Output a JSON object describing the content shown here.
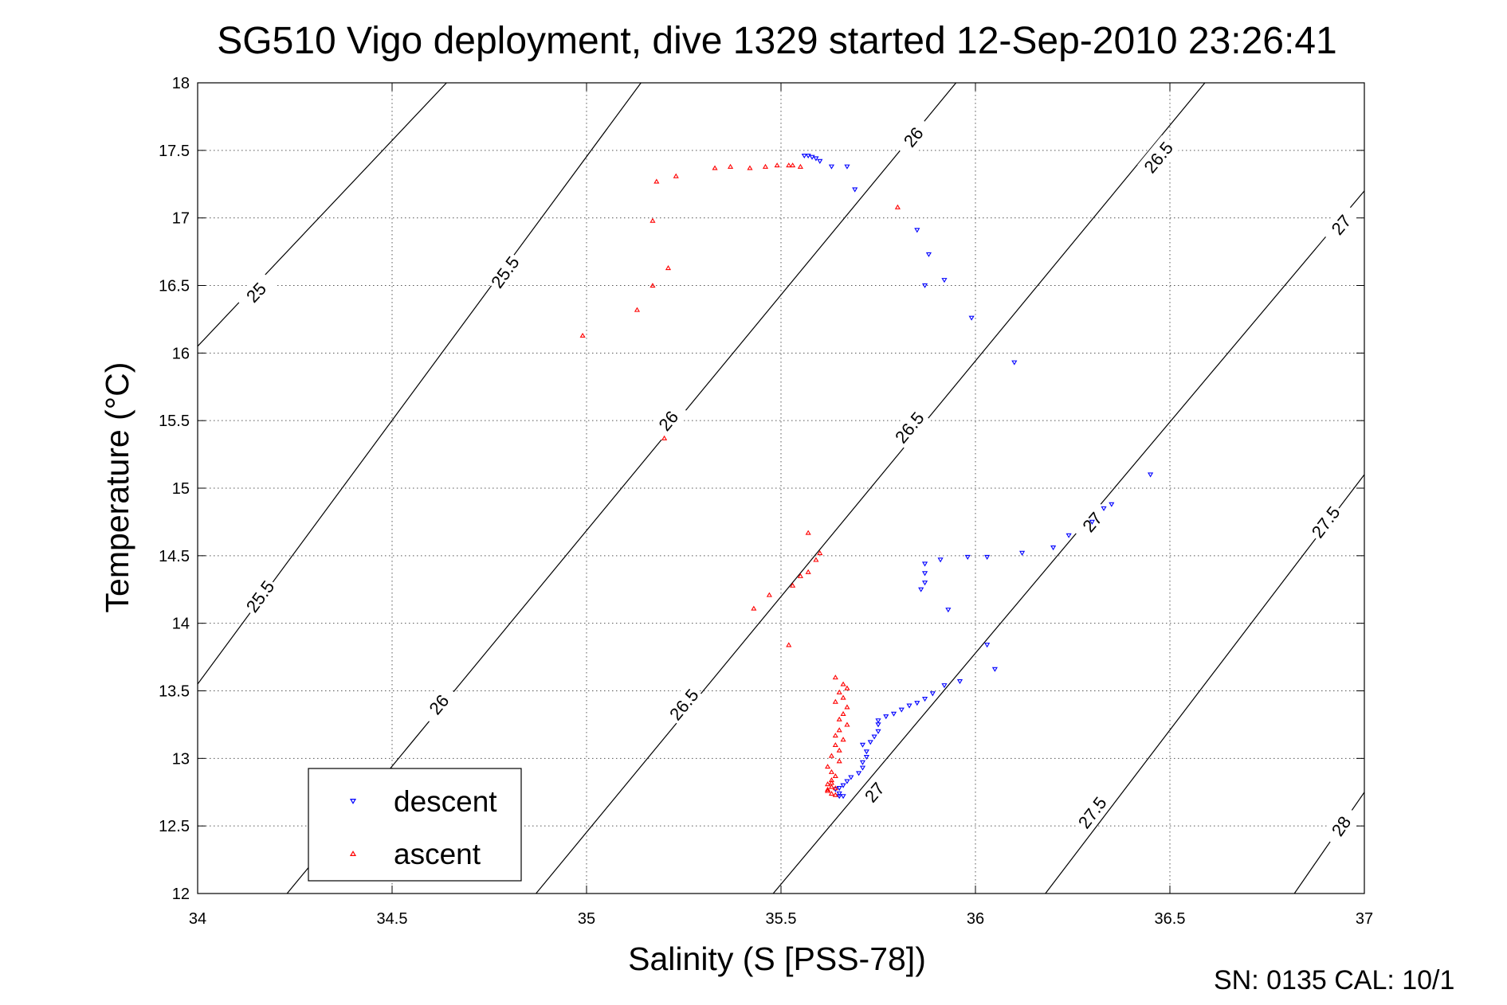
{
  "chart_data": {
    "type": "scatter",
    "title": "SG510 Vigo deployment, dive 1329 started 12-Sep-2010 23:26:41",
    "xlabel": "Salinity (S [PSS-78])",
    "ylabel": "Temperature (°C)",
    "xlim": [
      34,
      37
    ],
    "ylim": [
      12,
      18
    ],
    "xticks": [
      "34",
      "34.5",
      "35",
      "35.5",
      "36",
      "36.5",
      "37"
    ],
    "yticks": [
      "12",
      "12.5",
      "13",
      "13.5",
      "14",
      "14.5",
      "15",
      "15.5",
      "16",
      "16.5",
      "17",
      "17.5",
      "18"
    ],
    "grid": true,
    "legend_position": "bottom-left",
    "footnote": "SN: 0135  CAL: 10/1",
    "density_contours": [
      {
        "level": "25",
        "points": [
          [
            34.0,
            16.05
          ],
          [
            34.64,
            18.0
          ]
        ],
        "labels": [
          [
            34.15,
            16.45
          ]
        ]
      },
      {
        "level": "25.5",
        "points": [
          [
            34.0,
            13.55
          ],
          [
            35.14,
            18.0
          ]
        ],
        "labels": [
          [
            34.16,
            14.2
          ],
          [
            34.79,
            16.6
          ]
        ]
      },
      {
        "level": "26",
        "points": [
          [
            34.23,
            12.0
          ],
          [
            35.95,
            18.0
          ]
        ],
        "labels": [
          [
            34.62,
            13.4
          ],
          [
            35.21,
            15.5
          ],
          [
            35.84,
            17.6
          ]
        ]
      },
      {
        "level": "26.5",
        "points": [
          [
            34.87,
            12.0
          ],
          [
            36.59,
            18.0
          ]
        ],
        "labels": [
          [
            35.25,
            13.4
          ],
          [
            35.83,
            15.45
          ],
          [
            36.47,
            17.45
          ]
        ]
      },
      {
        "level": "27",
        "points": [
          [
            35.48,
            12.0
          ],
          [
            37.0,
            17.2
          ]
        ],
        "labels": [
          [
            35.74,
            12.75
          ],
          [
            36.3,
            14.75
          ],
          [
            36.94,
            16.95
          ]
        ]
      },
      {
        "level": "27.5",
        "points": [
          [
            36.18,
            12.0
          ],
          [
            37.0,
            15.1
          ]
        ],
        "labels": [
          [
            36.3,
            12.6
          ],
          [
            36.9,
            14.75
          ]
        ]
      },
      {
        "level": "28",
        "points": [
          [
            36.82,
            12.0
          ],
          [
            37.0,
            12.75
          ]
        ],
        "labels": [
          [
            36.94,
            12.5
          ]
        ]
      }
    ],
    "series": [
      {
        "name": "descent",
        "color": "#0000ff",
        "marker": "triangle-down",
        "points": [
          [
            35.56,
            17.46
          ],
          [
            35.57,
            17.46
          ],
          [
            35.58,
            17.45
          ],
          [
            35.59,
            17.44
          ],
          [
            35.6,
            17.42
          ],
          [
            35.63,
            17.38
          ],
          [
            35.67,
            17.38
          ],
          [
            35.69,
            17.21
          ],
          [
            35.85,
            16.91
          ],
          [
            35.88,
            16.73
          ],
          [
            35.87,
            16.5
          ],
          [
            35.92,
            16.54
          ],
          [
            35.99,
            16.26
          ],
          [
            36.1,
            15.93
          ],
          [
            36.45,
            15.1
          ],
          [
            36.35,
            14.88
          ],
          [
            36.33,
            14.85
          ],
          [
            36.3,
            14.75
          ],
          [
            36.24,
            14.65
          ],
          [
            36.2,
            14.56
          ],
          [
            36.12,
            14.52
          ],
          [
            36.03,
            14.49
          ],
          [
            35.98,
            14.49
          ],
          [
            35.91,
            14.47
          ],
          [
            35.87,
            14.44
          ],
          [
            35.87,
            14.37
          ],
          [
            35.87,
            14.3
          ],
          [
            35.86,
            14.25
          ],
          [
            35.93,
            14.1
          ],
          [
            36.03,
            13.84
          ],
          [
            36.05,
            13.66
          ],
          [
            35.96,
            13.57
          ],
          [
            35.92,
            13.54
          ],
          [
            35.89,
            13.48
          ],
          [
            35.87,
            13.44
          ],
          [
            35.85,
            13.41
          ],
          [
            35.83,
            13.39
          ],
          [
            35.81,
            13.36
          ],
          [
            35.79,
            13.33
          ],
          [
            35.77,
            13.31
          ],
          [
            35.75,
            13.28
          ],
          [
            35.75,
            13.25
          ],
          [
            35.75,
            13.2
          ],
          [
            35.74,
            13.16
          ],
          [
            35.73,
            13.12
          ],
          [
            35.71,
            13.1
          ],
          [
            35.72,
            13.05
          ],
          [
            35.72,
            13.01
          ],
          [
            35.71,
            12.97
          ],
          [
            35.71,
            12.93
          ],
          [
            35.7,
            12.89
          ],
          [
            35.68,
            12.86
          ],
          [
            35.67,
            12.83
          ],
          [
            35.66,
            12.8
          ],
          [
            35.65,
            12.78
          ],
          [
            35.64,
            12.77
          ],
          [
            35.65,
            12.74
          ],
          [
            35.65,
            12.72
          ],
          [
            35.66,
            12.72
          ]
        ]
      },
      {
        "name": "ascent",
        "color": "#ff0000",
        "marker": "triangle-up",
        "points": [
          [
            34.99,
            16.13
          ],
          [
            35.13,
            16.32
          ],
          [
            35.17,
            16.5
          ],
          [
            35.21,
            16.63
          ],
          [
            35.17,
            16.98
          ],
          [
            35.18,
            17.27
          ],
          [
            35.23,
            17.31
          ],
          [
            35.33,
            17.37
          ],
          [
            35.37,
            17.38
          ],
          [
            35.42,
            17.37
          ],
          [
            35.46,
            17.38
          ],
          [
            35.49,
            17.39
          ],
          [
            35.52,
            17.39
          ],
          [
            35.53,
            17.39
          ],
          [
            35.55,
            17.38
          ],
          [
            35.8,
            17.08
          ],
          [
            35.2,
            15.37
          ],
          [
            35.57,
            14.67
          ],
          [
            35.6,
            14.52
          ],
          [
            35.59,
            14.47
          ],
          [
            35.57,
            14.38
          ],
          [
            35.55,
            14.35
          ],
          [
            35.53,
            14.28
          ],
          [
            35.47,
            14.21
          ],
          [
            35.43,
            14.11
          ],
          [
            35.52,
            13.84
          ],
          [
            35.64,
            13.6
          ],
          [
            35.66,
            13.55
          ],
          [
            35.67,
            13.52
          ],
          [
            35.65,
            13.49
          ],
          [
            35.66,
            13.45
          ],
          [
            35.64,
            13.42
          ],
          [
            35.67,
            13.38
          ],
          [
            35.66,
            13.33
          ],
          [
            35.65,
            13.29
          ],
          [
            35.67,
            13.25
          ],
          [
            35.65,
            13.21
          ],
          [
            35.64,
            13.17
          ],
          [
            35.66,
            13.14
          ],
          [
            35.64,
            13.1
          ],
          [
            35.65,
            13.06
          ],
          [
            35.63,
            13.02
          ],
          [
            35.65,
            12.98
          ],
          [
            35.62,
            12.94
          ],
          [
            35.63,
            12.9
          ],
          [
            35.64,
            12.87
          ],
          [
            35.63,
            12.84
          ],
          [
            35.62,
            12.81
          ],
          [
            35.63,
            12.79
          ],
          [
            35.62,
            12.76
          ],
          [
            35.63,
            12.74
          ],
          [
            35.64,
            12.73
          ],
          [
            35.62,
            12.77
          ],
          [
            35.63,
            12.82
          ],
          [
            35.64,
            12.78
          ]
        ]
      }
    ]
  }
}
